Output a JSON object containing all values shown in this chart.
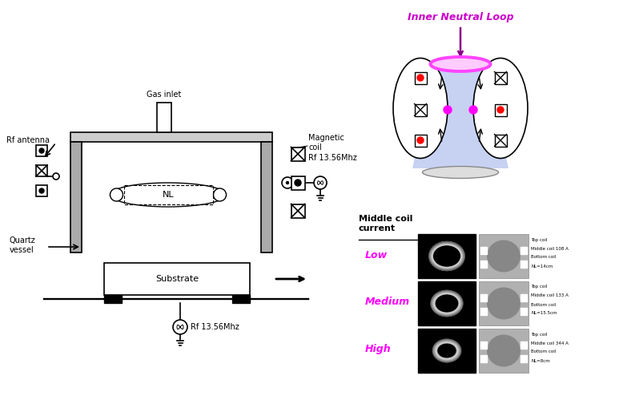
{
  "bg_color": "#ffffff",
  "left_panel": {
    "gas_inlet_label": "Gas inlet",
    "magnetic_coil_label": "Magnetic\ncoil",
    "rf_antenna_label": "Rf antenna",
    "quartz_vessel_label": "Quartz\nvessel",
    "substrate_label": "Substrate",
    "rf_label1": "Rf 13.56Mhz",
    "rf_label2": "Rf 13.56Mhz",
    "nl_label": "NL"
  },
  "right_panel_top": {
    "title": "Inner Neutral Loop",
    "title_color": "#cc00cc"
  },
  "right_panel_bottom": {
    "title": "Middle coil\ncurrent",
    "title_color": "#000000",
    "labels": [
      "Low",
      "Medium",
      "High"
    ],
    "label_color": "#ff00ff",
    "coil_values": [
      "108 A",
      "133 A",
      "344 A"
    ],
    "nl_values": [
      "NL=14cm",
      "NL=15.5cm",
      "NL=8cm"
    ]
  }
}
